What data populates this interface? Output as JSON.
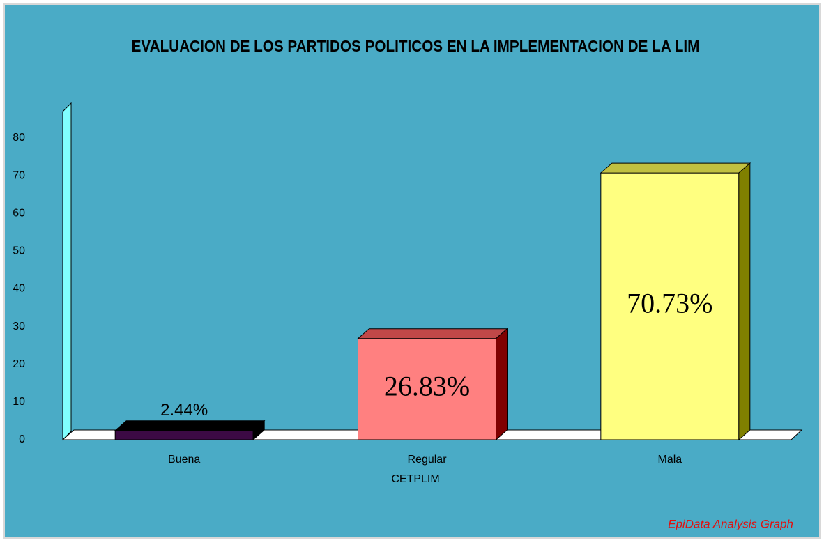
{
  "chart_data": {
    "type": "bar3d",
    "title": "EVALUACION DE LOS PARTIDOS POLITICOS EN LA IMPLEMENTACION DE LA LIM",
    "x_label": "CETPLIM",
    "footer": "EpiData Analysis Graph",
    "categories": [
      "Buena",
      "Regular",
      "Mala"
    ],
    "values": [
      2.44,
      26.83,
      70.73
    ],
    "value_labels": [
      "2.44%",
      "26.83%",
      "70.73%"
    ],
    "colors": [
      "#3c0a44",
      "#ff8080",
      "#ffff80"
    ],
    "top_colors": [
      "#000000",
      "#c04848",
      "#c0c040"
    ],
    "side_colors": [
      "#000000",
      "#800000",
      "#808000"
    ],
    "ylim": [
      0,
      87
    ],
    "yticks": [
      0,
      10,
      20,
      30,
      40,
      50,
      60,
      70,
      80
    ]
  }
}
